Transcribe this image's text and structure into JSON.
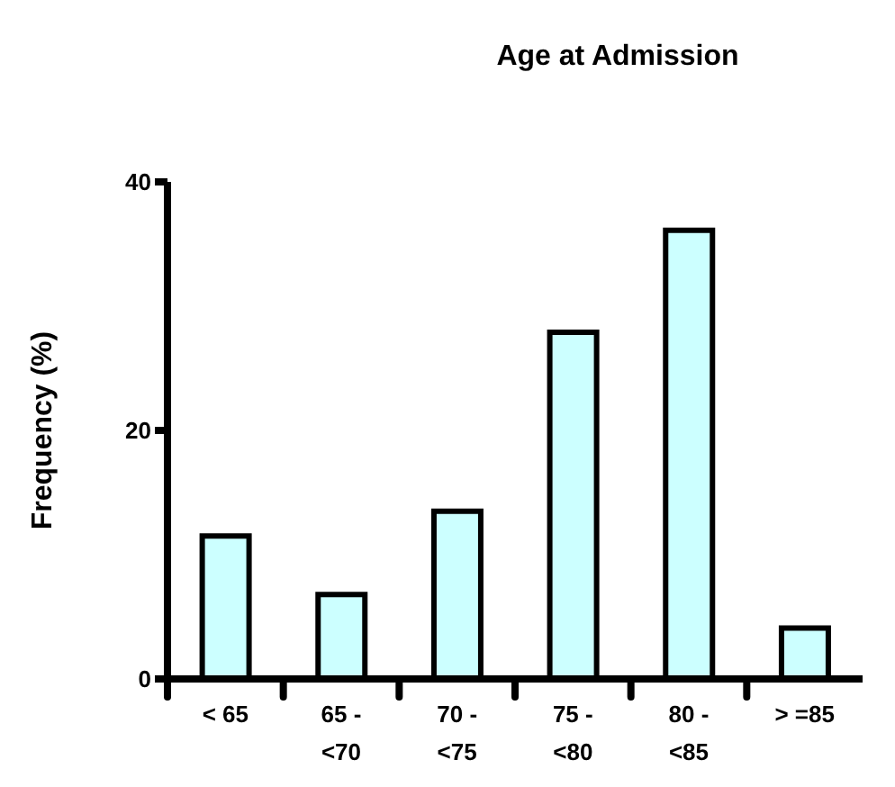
{
  "chart_data": {
    "type": "bar",
    "title": "Age at Admission",
    "ylabel": "Frequency (%)",
    "categories": [
      "< 65",
      "65 - <70",
      "70 - <75",
      "75 - <80",
      "80 - <85",
      "> =85"
    ],
    "values": [
      11.5,
      6.8,
      13.5,
      27.9,
      36.1,
      4.1
    ],
    "color": "#ccffff",
    "ylim": [
      0,
      40
    ],
    "yticks": [
      0,
      20,
      40
    ]
  }
}
